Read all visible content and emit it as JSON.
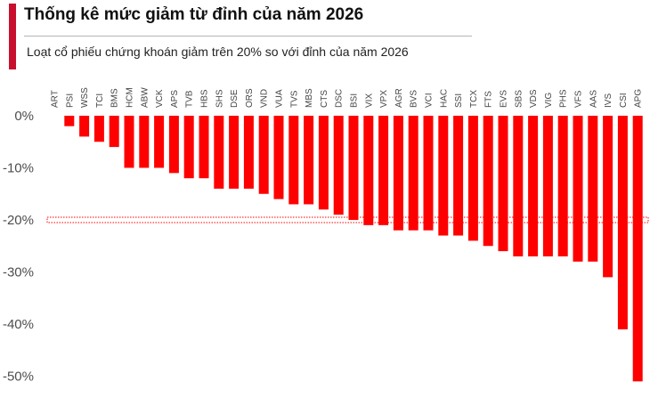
{
  "title": "Thống kê mức giảm từ đỉnh của năm 2026",
  "subtitle": "Loạt cổ phiếu chứng khoán giảm trên 20% so với đỉnh của năm 2026",
  "colors": {
    "accent": "#c8102e",
    "bar": "#ff0000",
    "threshold_band": "#ff0000",
    "grid": "#dddddd"
  },
  "chart_data": {
    "type": "bar",
    "orientation": "vertical",
    "category_axis_position": "top",
    "categories": [
      "ART",
      "PSI",
      "WSS",
      "TCI",
      "BMS",
      "HCM",
      "ABW",
      "VCK",
      "APS",
      "TVB",
      "HBS",
      "SHS",
      "DSE",
      "ORS",
      "VND",
      "VUA",
      "TVS",
      "MBS",
      "CTS",
      "DSC",
      "BSI",
      "VIX",
      "VPX",
      "AGR",
      "BVS",
      "VCI",
      "HAC",
      "SSI",
      "TCX",
      "FTS",
      "EVS",
      "SBS",
      "VDS",
      "VIG",
      "PHS",
      "VFS",
      "AAS",
      "IVS",
      "CSI",
      "APG"
    ],
    "values": [
      0,
      -2,
      -4,
      -5,
      -6,
      -10,
      -10,
      -10,
      -11,
      -12,
      -12,
      -14,
      -14,
      -14,
      -15,
      -16,
      -17,
      -17,
      -18,
      -19,
      -20,
      -21,
      -21,
      -22,
      -22,
      -22,
      -23,
      -23,
      -24,
      -25,
      -26,
      -27,
      -27,
      -27,
      -27,
      -28,
      -28,
      -31,
      -41,
      -51
    ],
    "y_ticks": [
      0,
      -10,
      -20,
      -30,
      -40,
      -50
    ],
    "y_tick_labels": [
      "0%",
      "-10%",
      "-20%",
      "-30%",
      "-40%",
      "-50%"
    ],
    "ylim": [
      -52,
      0
    ],
    "threshold": -20,
    "grid": false,
    "legend": "none",
    "xlabel": "",
    "ylabel": ""
  }
}
